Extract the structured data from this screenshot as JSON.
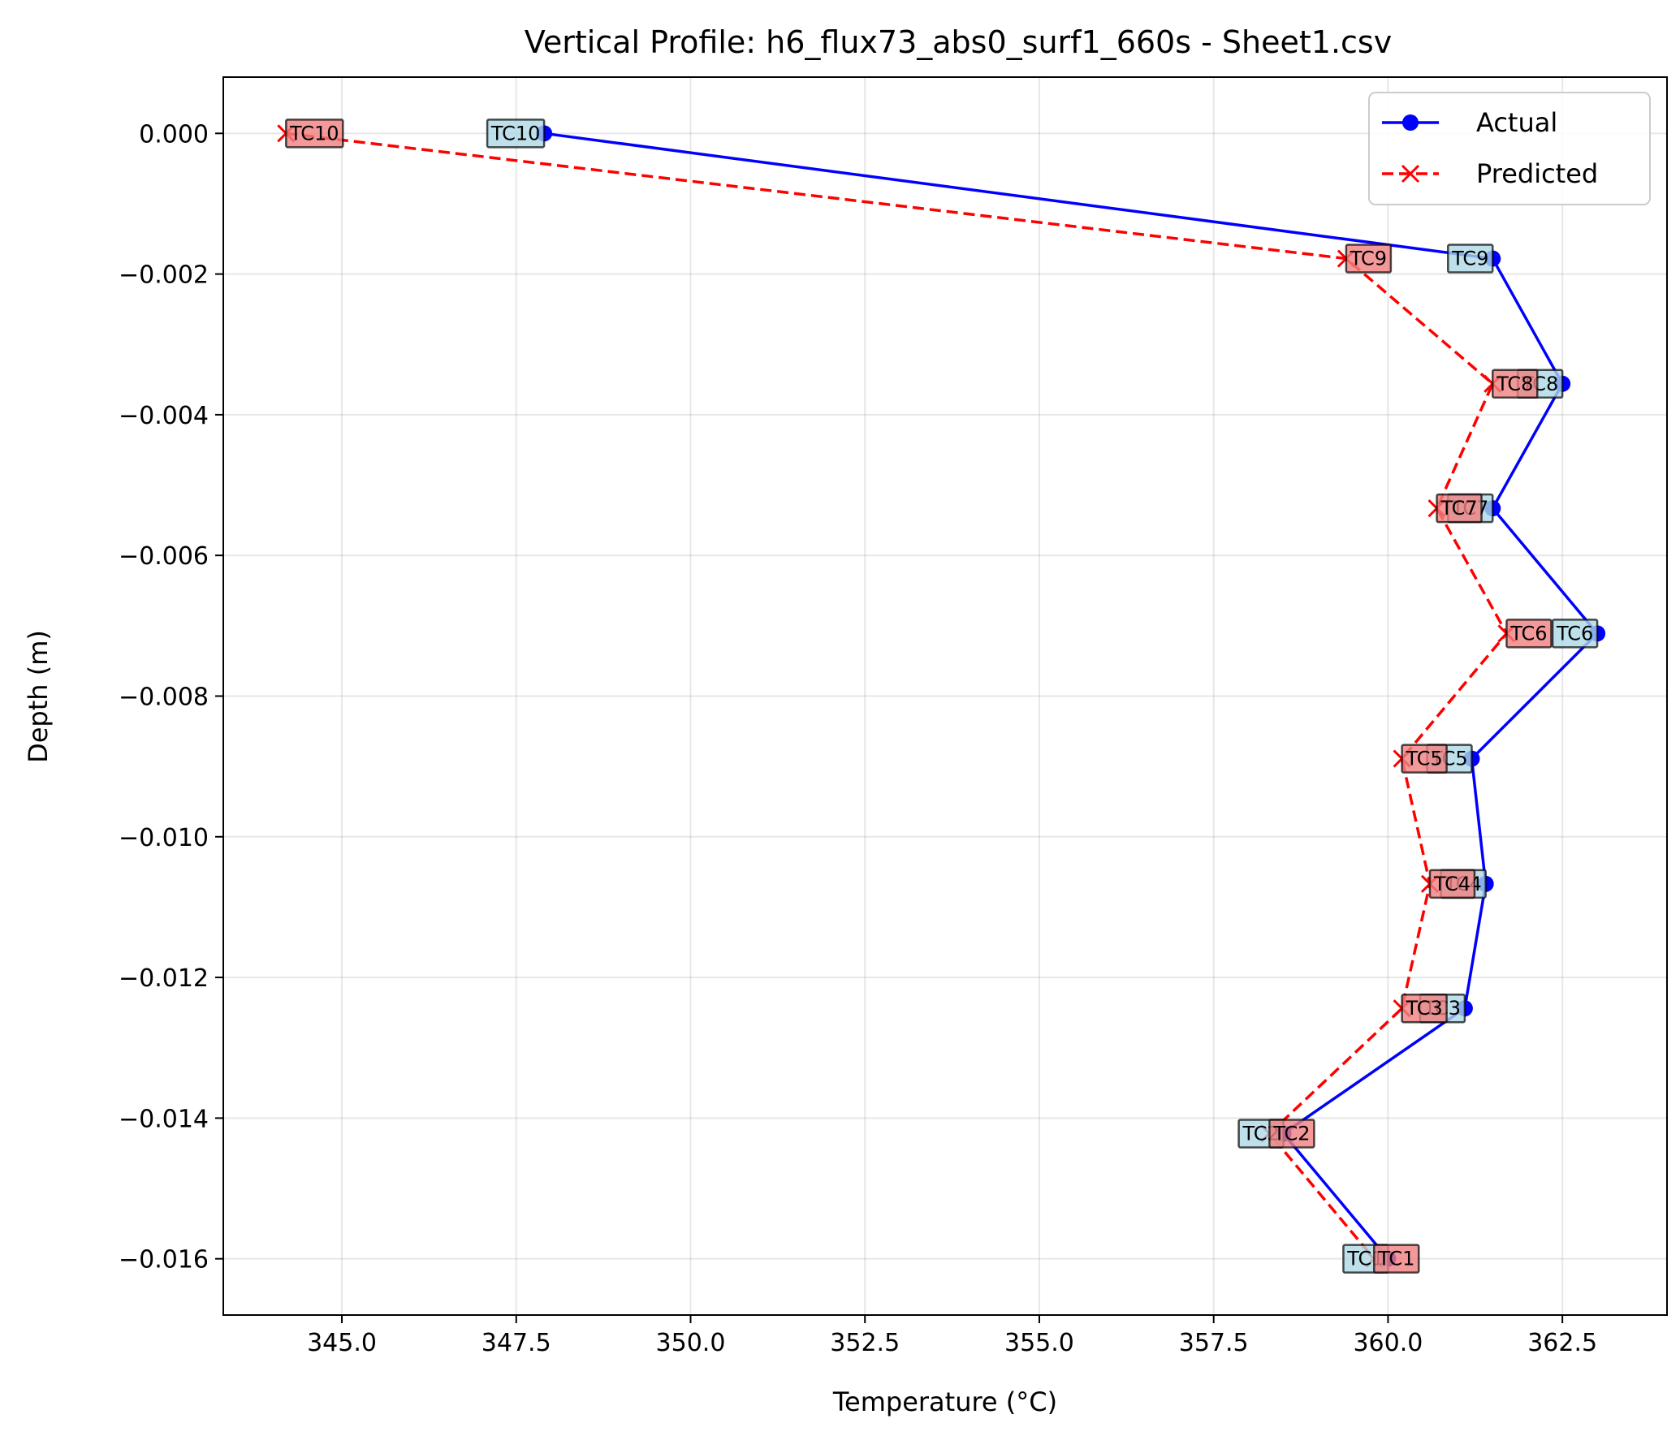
{
  "chart_data": {
    "type": "line",
    "title": "Vertical Profile: h6_flux73_abs0_surf1_660s - Sheet1.csv",
    "xlabel": "Temperature (°C)",
    "ylabel": "Depth (m)",
    "xlim": [
      343.3,
      364.0
    ],
    "ylim": [
      -0.0168,
      0.0008
    ],
    "xticks": [
      345.0,
      347.5,
      350.0,
      352.5,
      355.0,
      357.5,
      360.0,
      362.5
    ],
    "xtick_labels": [
      "345.0",
      "347.5",
      "350.0",
      "352.5",
      "355.0",
      "357.5",
      "360.0",
      "362.5"
    ],
    "yticks": [
      0.0,
      -0.002,
      -0.004,
      -0.006,
      -0.008,
      -0.01,
      -0.012,
      -0.014,
      -0.016
    ],
    "ytick_labels": [
      "0.000",
      "−0.002",
      "−0.004",
      "−0.006",
      "−0.008",
      "−0.010",
      "−0.012",
      "−0.014",
      "−0.016"
    ],
    "grid": true,
    "legend_position": "top-right",
    "series": [
      {
        "name": "Actual",
        "color": "#0000ff",
        "marker": "circle",
        "linestyle": "solid",
        "label_color": "#add8e6",
        "labels": [
          "TC10",
          "TC9",
          "TC8",
          "TC7",
          "TC6",
          "TC5",
          "TC4",
          "TC3",
          "TC2",
          "TC1"
        ],
        "x": [
          347.9,
          361.5,
          362.5,
          361.5,
          363.0,
          361.2,
          361.4,
          361.1,
          358.5,
          360.0
        ],
        "y": [
          0.0,
          -0.00178,
          -0.00356,
          -0.00533,
          -0.00711,
          -0.00889,
          -0.01067,
          -0.01244,
          -0.01422,
          -0.016
        ]
      },
      {
        "name": "Predicted",
        "color": "#ff0000",
        "marker": "x",
        "linestyle": "dashed",
        "label_color": "#f08080",
        "labels": [
          "TC10",
          "TC9",
          "TC8",
          "TC7",
          "TC6",
          "TC5",
          "TC4",
          "TC3",
          "TC2",
          "TC1"
        ],
        "x": [
          344.2,
          359.4,
          361.5,
          360.7,
          361.7,
          360.2,
          360.6,
          360.2,
          358.3,
          359.8
        ],
        "y": [
          0.0,
          -0.00178,
          -0.00356,
          -0.00533,
          -0.00711,
          -0.00889,
          -0.01067,
          -0.01244,
          -0.01422,
          -0.016
        ]
      }
    ]
  }
}
